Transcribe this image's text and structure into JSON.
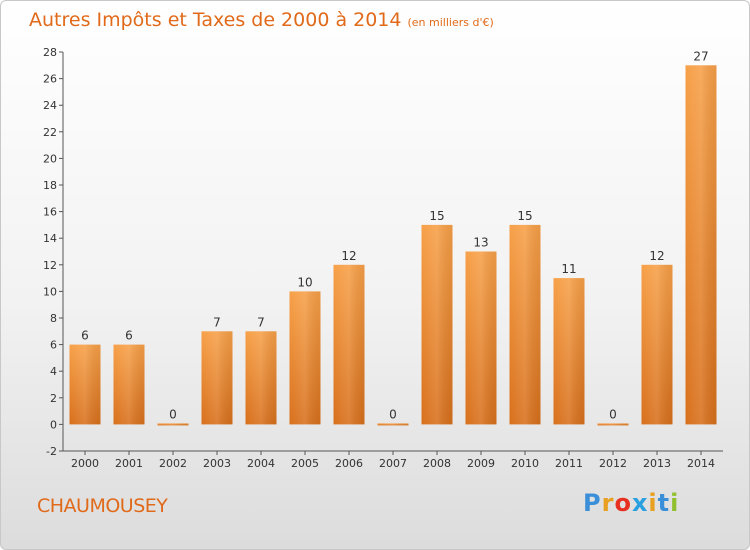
{
  "header": {
    "title": "Autres Impôts et Taxes de 2000 à 2014",
    "unit": "(en milliers d'€)"
  },
  "footer": {
    "commune": "CHAUMOUSEY",
    "logo_letters": [
      "P",
      "r",
      "o",
      "x",
      "i",
      "t",
      "i"
    ],
    "logo_colors": [
      "#3a8fd8",
      "#e8a020",
      "#e83020",
      "#2aa0e0",
      "#e8a020",
      "#3a8fd8",
      "#90c030"
    ]
  },
  "chart_data": {
    "type": "bar",
    "categories": [
      "2000",
      "2001",
      "2002",
      "2003",
      "2004",
      "2005",
      "2006",
      "2007",
      "2008",
      "2009",
      "2010",
      "2011",
      "2012",
      "2013",
      "2014"
    ],
    "values": [
      6,
      6,
      0,
      7,
      7,
      10,
      12,
      0,
      15,
      13,
      15,
      11,
      0,
      12,
      27
    ],
    "title": "Autres Impôts et Taxes de 2000 à 2014",
    "xlabel": "",
    "ylabel": "",
    "ylim": [
      -2,
      28
    ],
    "yticks": [
      -2,
      0,
      2,
      4,
      6,
      8,
      10,
      12,
      14,
      16,
      18,
      20,
      22,
      24,
      26,
      28
    ],
    "grid": false,
    "bar_color": "#f0903a"
  }
}
